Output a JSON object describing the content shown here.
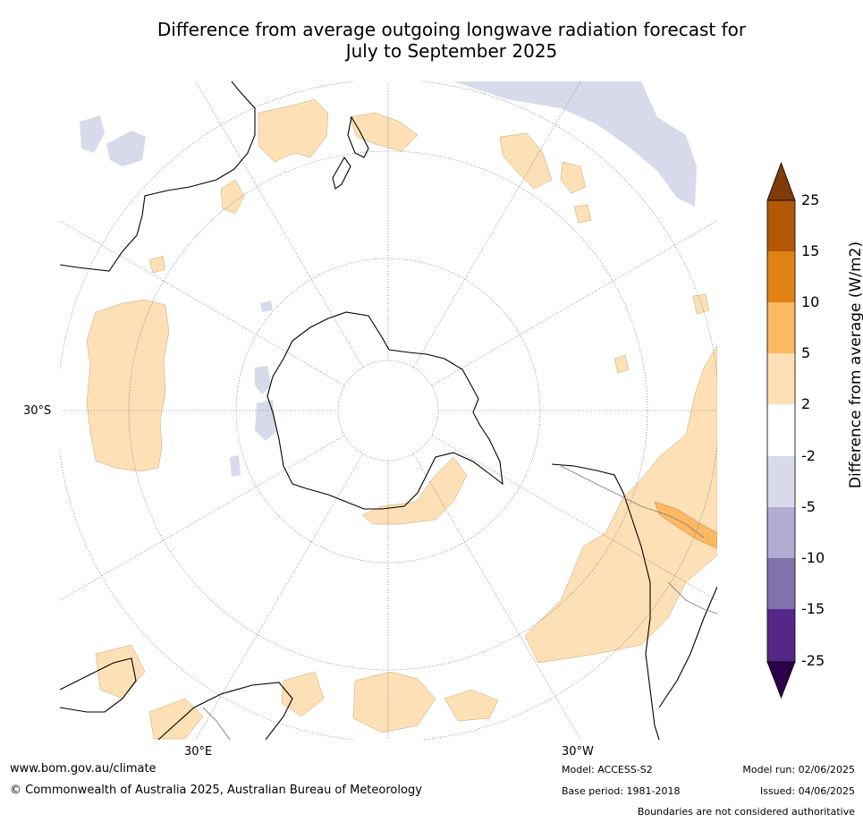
{
  "title": {
    "line1": "Difference from average outgoing longwave radiation forecast for",
    "line2": "July to September 2025"
  },
  "map": {
    "projection": "south-polar-stereographic",
    "latitude_label": "30°S",
    "longitude_labels": [
      "30°E",
      "30°W"
    ],
    "colors": {
      "ocean_background": "#ffffff",
      "coastline": "#000000",
      "boundary": "#808080",
      "graticule": "#555555",
      "positive_2_5": "#fde0b6",
      "positive_5_10": "#fdb863",
      "negative_2_5": "#d8daeb"
    }
  },
  "colorbar": {
    "title": "Difference from average (W/m2)",
    "extend": "both",
    "ticks": [
      "25",
      "15",
      "10",
      "5",
      "2",
      "-2",
      "-5",
      "-10",
      "-15",
      "-25"
    ],
    "bins": [
      {
        "range": "above 25",
        "color": "#7f3b08"
      },
      {
        "range": "15 to 25",
        "color": "#b35806"
      },
      {
        "range": "10 to 15",
        "color": "#e08214"
      },
      {
        "range": "5 to 10",
        "color": "#fdb863"
      },
      {
        "range": "2 to 5",
        "color": "#fee0b6"
      },
      {
        "range": "-2 to 2",
        "color": "#ffffff"
      },
      {
        "range": "-5 to -2",
        "color": "#d8daeb"
      },
      {
        "range": "-10 to -5",
        "color": "#b2abd2"
      },
      {
        "range": "-15 to -10",
        "color": "#8073ac"
      },
      {
        "range": "-25 to -15",
        "color": "#542788"
      },
      {
        "range": "below -25",
        "color": "#2d004b"
      }
    ]
  },
  "footer": {
    "website": "www.bom.gov.au/climate",
    "copyright": "© Commonwealth of Australia 2025, Australian Bureau of Meteorology",
    "model": "Model: ACCESS-S2",
    "base_period": "Base period: 1981-2018",
    "model_run": "Model run: 02/06/2025",
    "issued": "Issued: 04/06/2025",
    "disclaimer": "Boundaries are not considered authoritative"
  }
}
